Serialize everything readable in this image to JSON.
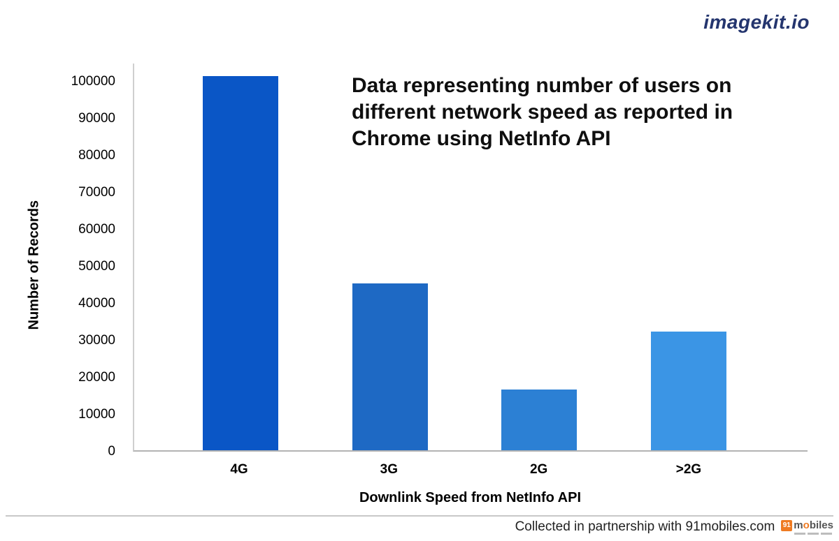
{
  "header": {
    "brand_logo": "imagekit.io",
    "brand_color": "#24356e"
  },
  "chart_data": {
    "type": "bar",
    "title": "Data representing number of users on different network speed as reported in Chrome using NetInfo API",
    "categories": [
      "4G",
      "3G",
      "2G",
      ">2G"
    ],
    "values": [
      101500,
      45300,
      16400,
      32300
    ],
    "bar_colors": [
      "#0a56c6",
      "#1e69c4",
      "#2c80d4",
      "#3b95e5"
    ],
    "xlabel": "Downlink Speed from NetInfo API",
    "ylabel": "Number of Records",
    "ylim": [
      0,
      105000
    ],
    "yticks": [
      0,
      10000,
      20000,
      30000,
      40000,
      50000,
      60000,
      70000,
      80000,
      90000,
      100000
    ],
    "grid": false,
    "legend": "none"
  },
  "footer": {
    "attribution": "Collected in partnership with 91mobiles.com",
    "logo": {
      "badge": "91",
      "name_before_o": "m",
      "name_o": "o",
      "name_after_o": "biles"
    }
  }
}
